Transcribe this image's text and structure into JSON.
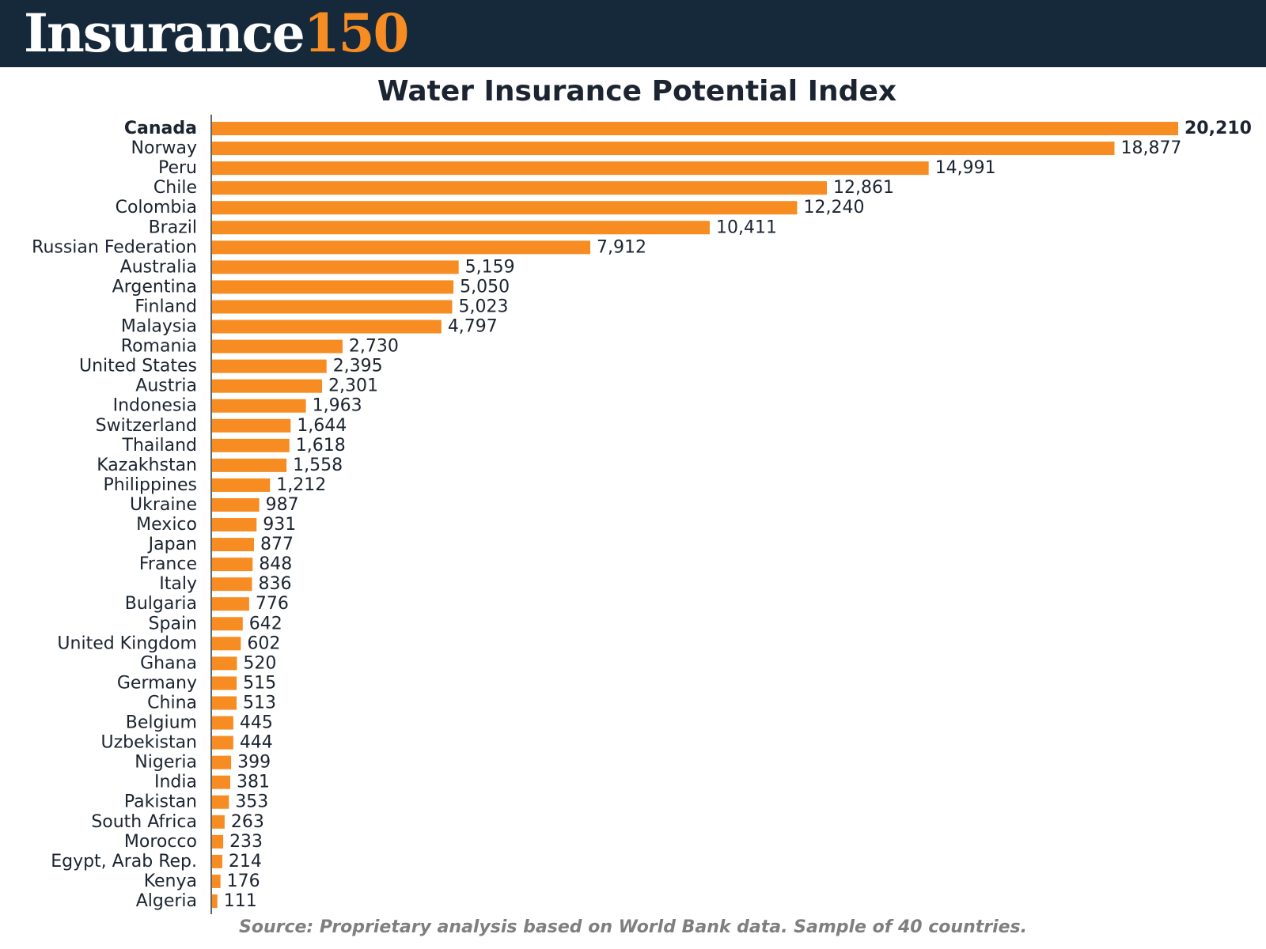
{
  "header": {
    "brand_word": "Insurance",
    "brand_number": "150",
    "brand_number_color": "#f68c22",
    "background_color": "#16293a"
  },
  "source_note": "Source: Proprietary analysis based on World Bank data. Sample of 40 countries.",
  "chart_data": {
    "type": "bar",
    "orientation": "horizontal",
    "title": "Water Insurance Potential Index",
    "bar_color": "#f68c22",
    "highlighted_category": "Canada",
    "categories": [
      "Canada",
      "Norway",
      "Peru",
      "Chile",
      "Colombia",
      "Brazil",
      "Russian Federation",
      "Australia",
      "Argentina",
      "Finland",
      "Malaysia",
      "Romania",
      "United States",
      "Austria",
      "Indonesia",
      "Switzerland",
      "Thailand",
      "Kazakhstan",
      "Philippines",
      "Ukraine",
      "Mexico",
      "Japan",
      "France",
      "Italy",
      "Bulgaria",
      "Spain",
      "United Kingdom",
      "Ghana",
      "Germany",
      "China",
      "Belgium",
      "Uzbekistan",
      "Nigeria",
      "India",
      "Pakistan",
      "South Africa",
      "Morocco",
      "Egypt, Arab Rep.",
      "Kenya",
      "Algeria"
    ],
    "values": [
      20210,
      18877,
      14991,
      12861,
      12240,
      10411,
      7912,
      5159,
      5050,
      5023,
      4797,
      2730,
      2395,
      2301,
      1963,
      1644,
      1618,
      1558,
      1212,
      987,
      931,
      877,
      848,
      836,
      776,
      642,
      602,
      520,
      515,
      513,
      445,
      444,
      399,
      381,
      353,
      263,
      233,
      214,
      176,
      111
    ],
    "value_labels": [
      "20,210",
      "18,877",
      "14,991",
      "12,861",
      "12,240",
      "10,411",
      "7,912",
      "5,159",
      "5,050",
      "5,023",
      "4,797",
      "2,730",
      "2,395",
      "2,301",
      "1,963",
      "1,644",
      "1,618",
      "1,558",
      "1,212",
      "987",
      "931",
      "877",
      "848",
      "836",
      "776",
      "642",
      "602",
      "520",
      "515",
      "513",
      "445",
      "444",
      "399",
      "381",
      "353",
      "263",
      "233",
      "214",
      "176",
      "111"
    ],
    "xlim": [
      0,
      20210
    ],
    "grid": false,
    "legend": "none"
  }
}
